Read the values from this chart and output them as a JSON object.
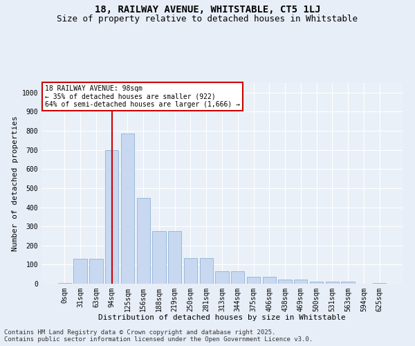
{
  "title_line1": "18, RAILWAY AVENUE, WHITSTABLE, CT5 1LJ",
  "title_line2": "Size of property relative to detached houses in Whitstable",
  "xlabel": "Distribution of detached houses by size in Whitstable",
  "ylabel": "Number of detached properties",
  "categories": [
    "0sqm",
    "31sqm",
    "63sqm",
    "94sqm",
    "125sqm",
    "156sqm",
    "188sqm",
    "219sqm",
    "250sqm",
    "281sqm",
    "313sqm",
    "344sqm",
    "375sqm",
    "406sqm",
    "438sqm",
    "469sqm",
    "500sqm",
    "531sqm",
    "563sqm",
    "594sqm",
    "625sqm"
  ],
  "values": [
    5,
    130,
    130,
    700,
    785,
    450,
    275,
    275,
    135,
    135,
    65,
    65,
    38,
    38,
    22,
    22,
    10,
    10,
    10,
    0,
    5
  ],
  "bar_color": "#c8d8f0",
  "bar_edge_color": "#7fa8d0",
  "vline_x": 3,
  "vline_color": "#cc0000",
  "annotation_text": "18 RAILWAY AVENUE: 98sqm\n← 35% of detached houses are smaller (922)\n64% of semi-detached houses are larger (1,666) →",
  "annotation_box_color": "#ffffff",
  "annotation_box_edge": "#cc0000",
  "ylim": [
    0,
    1050
  ],
  "yticks": [
    0,
    100,
    200,
    300,
    400,
    500,
    600,
    700,
    800,
    900,
    1000
  ],
  "footer_line1": "Contains HM Land Registry data © Crown copyright and database right 2025.",
  "footer_line2": "Contains public sector information licensed under the Open Government Licence v3.0.",
  "bg_color": "#e8eef8",
  "plot_bg_color": "#eaf0f8",
  "grid_color": "#ffffff",
  "title_fontsize": 10,
  "subtitle_fontsize": 9,
  "axis_label_fontsize": 8,
  "tick_fontsize": 7,
  "annotation_fontsize": 7,
  "footer_fontsize": 6.5
}
